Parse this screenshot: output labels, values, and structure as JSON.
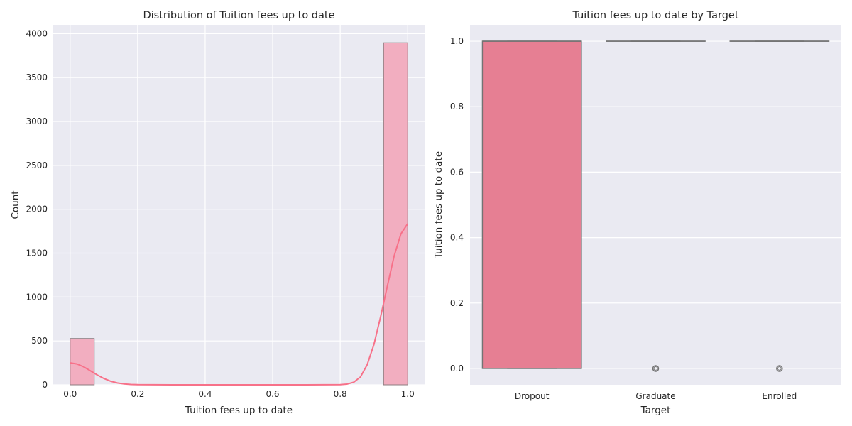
{
  "chart_data": [
    {
      "type": "histogram",
      "title": "Distribution of Tuition fees up to date",
      "xlabel": "Tuition fees up to date",
      "ylabel": "Count",
      "xlim": [
        -0.05,
        1.05
      ],
      "ylim": [
        0,
        4100
      ],
      "xticks": [
        0.0,
        0.2,
        0.4,
        0.6,
        0.8,
        1.0
      ],
      "xtick_labels": [
        "0.0",
        "0.2",
        "0.4",
        "0.6",
        "0.8",
        "1.0"
      ],
      "yticks": [
        0,
        500,
        1000,
        1500,
        2000,
        2500,
        3000,
        3500,
        4000
      ],
      "ytick_labels": [
        "0",
        "500",
        "1000",
        "1500",
        "2000",
        "2500",
        "3000",
        "3500",
        "4000"
      ],
      "grid": true,
      "bins": [
        {
          "x0": 0.0,
          "x1": 0.0714,
          "count": 528
        },
        {
          "x0": 0.9286,
          "x1": 1.0,
          "count": 3896
        }
      ],
      "kde": {
        "x": [
          0.0,
          0.02,
          0.04,
          0.06,
          0.08,
          0.1,
          0.12,
          0.14,
          0.16,
          0.18,
          0.2,
          0.3,
          0.4,
          0.5,
          0.6,
          0.7,
          0.8,
          0.82,
          0.84,
          0.86,
          0.88,
          0.9,
          0.92,
          0.94,
          0.96,
          0.98,
          1.0
        ],
        "y": [
          250,
          238,
          205,
          160,
          113,
          72,
          41,
          21,
          10,
          4,
          2,
          0,
          0,
          0,
          0,
          0,
          2,
          8,
          30,
          90,
          230,
          460,
          780,
          1130,
          1470,
          1720,
          1835
        ]
      },
      "colors": {
        "bar": "#f2aec0",
        "bar_edge": "#8c7d80",
        "kde": "#f77189"
      }
    },
    {
      "type": "box",
      "title": "Tuition fees up to date by Target",
      "xlabel": "Target",
      "ylabel": "Tuition fees up to date",
      "categories": [
        "Dropout",
        "Graduate",
        "Enrolled"
      ],
      "ylim": [
        -0.05,
        1.05
      ],
      "yticks": [
        0.0,
        0.2,
        0.4,
        0.6,
        0.8,
        1.0
      ],
      "ytick_labels": [
        "0.0",
        "0.2",
        "0.4",
        "0.6",
        "0.8",
        "1.0"
      ],
      "grid": true,
      "boxes": [
        {
          "category": "Dropout",
          "q1": 0.0,
          "median": 1.0,
          "q3": 1.0,
          "whisker_low": 0.0,
          "whisker_high": 1.0,
          "outliers": []
        },
        {
          "category": "Graduate",
          "q1": 1.0,
          "median": 1.0,
          "q3": 1.0,
          "whisker_low": 1.0,
          "whisker_high": 1.0,
          "outliers": [
            0.0
          ]
        },
        {
          "category": "Enrolled",
          "q1": 1.0,
          "median": 1.0,
          "q3": 1.0,
          "whisker_low": 1.0,
          "whisker_high": 1.0,
          "outliers": [
            0.0
          ]
        }
      ],
      "colors": {
        "box": "#e67f93",
        "line": "#737373",
        "background": "#eaeaf2"
      }
    }
  ]
}
